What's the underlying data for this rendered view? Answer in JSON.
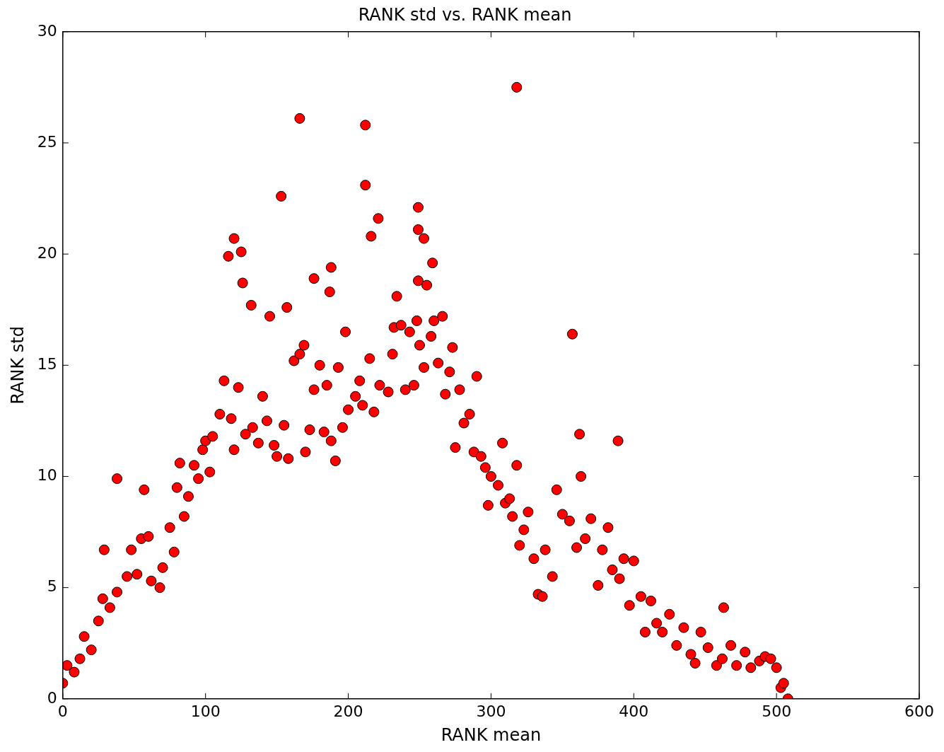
{
  "chart_data": {
    "type": "scatter",
    "title": "RANK std vs. RANK mean",
    "xlabel": "RANK mean",
    "ylabel": "RANK std",
    "xlim": [
      0,
      600
    ],
    "xticks": [
      0,
      100,
      200,
      300,
      400,
      500,
      600
    ],
    "ylim": [
      0,
      30
    ],
    "yticks": [
      0,
      5,
      10,
      15,
      20,
      25,
      30
    ],
    "marker": "circle",
    "series": [
      {
        "color": "#ff0000",
        "x": [
          0,
          3,
          8,
          12,
          15,
          20,
          25,
          28,
          29,
          33,
          38,
          38,
          45,
          48,
          52,
          55,
          57,
          60,
          62,
          68,
          70,
          75,
          78,
          80,
          82,
          85,
          88,
          92,
          95,
          98,
          100,
          103,
          105,
          110,
          113,
          116,
          118,
          120,
          120,
          123,
          125,
          126,
          128,
          132,
          133,
          137,
          140,
          143,
          145,
          148,
          150,
          153,
          155,
          157,
          158,
          162,
          166,
          166,
          169,
          170,
          173,
          176,
          176,
          180,
          183,
          185,
          187,
          188,
          188,
          191,
          193,
          196,
          198,
          200,
          205,
          208,
          210,
          212,
          212,
          215,
          216,
          218,
          221,
          222,
          228,
          231,
          232,
          234,
          237,
          240,
          243,
          246,
          248,
          249,
          249,
          249,
          250,
          253,
          253,
          255,
          258,
          259,
          260,
          263,
          266,
          268,
          271,
          273,
          275,
          278,
          281,
          285,
          288,
          290,
          293,
          296,
          298,
          300,
          305,
          308,
          310,
          313,
          315,
          318,
          318,
          320,
          323,
          326,
          330,
          333,
          336,
          338,
          343,
          346,
          350,
          355,
          357,
          360,
          362,
          363,
          366,
          370,
          375,
          378,
          382,
          385,
          389,
          390,
          393,
          397,
          400,
          405,
          408,
          412,
          416,
          420,
          425,
          430,
          435,
          440,
          443,
          447,
          452,
          458,
          462,
          463,
          468,
          472,
          478,
          482,
          488,
          492,
          496,
          500,
          503,
          505,
          508
        ],
        "values": [
          0.7,
          1.5,
          1.2,
          1.8,
          2.8,
          2.2,
          3.5,
          4.5,
          6.7,
          4.1,
          4.8,
          9.9,
          5.5,
          6.7,
          5.6,
          7.2,
          9.4,
          7.3,
          5.3,
          5.0,
          5.9,
          7.7,
          6.6,
          9.5,
          10.6,
          8.2,
          9.1,
          10.5,
          9.9,
          11.2,
          11.6,
          10.2,
          11.8,
          12.8,
          14.3,
          19.9,
          12.6,
          11.2,
          20.7,
          14.0,
          20.1,
          18.7,
          11.9,
          17.7,
          12.2,
          11.5,
          13.6,
          12.5,
          17.2,
          11.4,
          10.9,
          22.6,
          12.3,
          17.6,
          10.8,
          15.2,
          15.5,
          26.1,
          15.9,
          11.1,
          12.1,
          13.9,
          18.9,
          15.0,
          12.0,
          14.1,
          18.3,
          11.6,
          19.4,
          10.7,
          14.9,
          12.2,
          16.5,
          13.0,
          13.6,
          14.3,
          13.2,
          25.8,
          23.1,
          15.3,
          20.8,
          12.9,
          21.6,
          14.1,
          13.8,
          15.5,
          16.7,
          18.1,
          16.8,
          13.9,
          16.5,
          14.1,
          17.0,
          22.1,
          21.1,
          18.8,
          15.9,
          20.7,
          14.9,
          18.6,
          16.3,
          19.6,
          17.0,
          15.1,
          17.2,
          13.7,
          14.7,
          15.8,
          11.3,
          13.9,
          12.4,
          12.8,
          11.1,
          14.5,
          10.9,
          10.4,
          8.7,
          10.0,
          9.6,
          11.5,
          8.8,
          9.0,
          8.2,
          10.5,
          27.5,
          6.9,
          7.6,
          8.4,
          6.3,
          4.7,
          4.6,
          6.7,
          5.5,
          9.4,
          8.3,
          8.0,
          16.4,
          6.8,
          11.9,
          10.0,
          7.2,
          8.1,
          5.1,
          6.7,
          7.7,
          5.8,
          11.6,
          5.4,
          6.3,
          4.2,
          6.2,
          4.6,
          3.0,
          4.4,
          3.4,
          3.0,
          3.8,
          2.4,
          3.2,
          2.0,
          1.6,
          3.0,
          2.3,
          1.5,
          1.8,
          4.1,
          2.4,
          1.5,
          2.1,
          1.4,
          1.7,
          1.9,
          1.8,
          1.4,
          0.5,
          0.7,
          0.0
        ]
      }
    ]
  }
}
